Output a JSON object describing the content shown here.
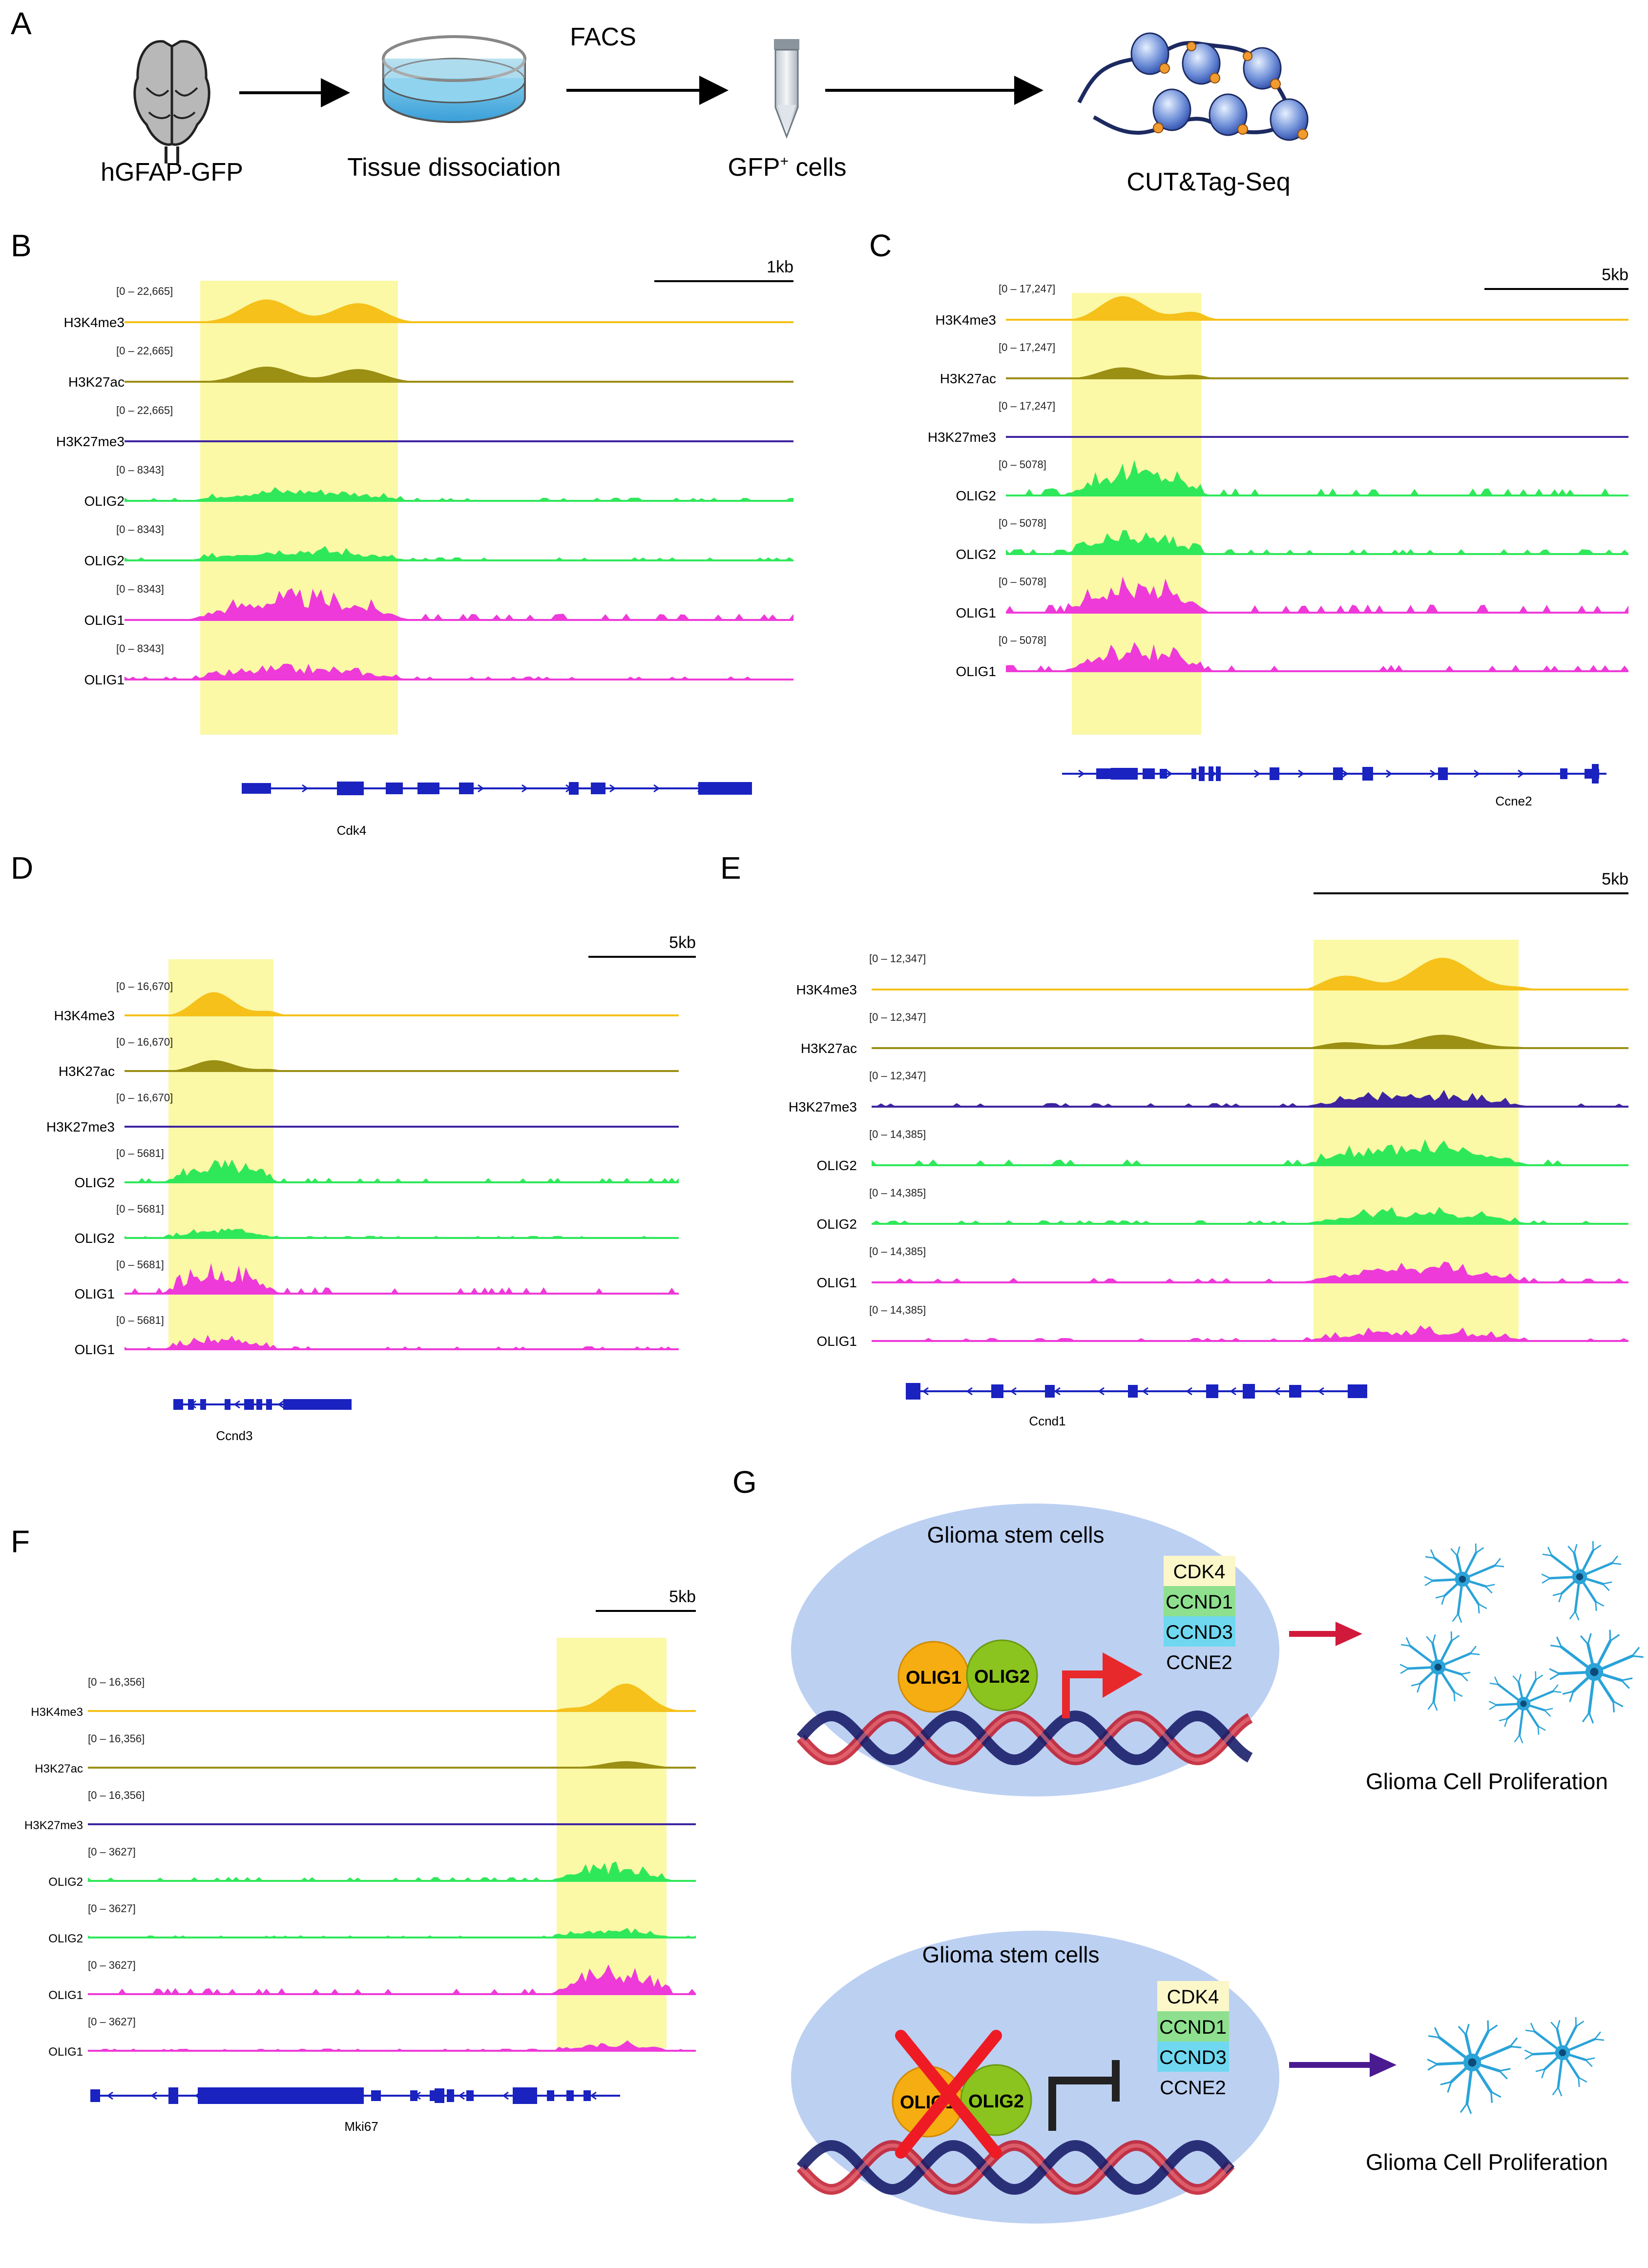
{
  "colors": {
    "H3K4me3": "#f5c11a",
    "H3K27ac": "#9b8f14",
    "H3K27me3": "#3f24a0",
    "OLIG2": "#2fe85a",
    "OLIG1": "#ee3ad8",
    "highlight": "#fbf8a6",
    "gene": "#1a22c0",
    "arrow_red": "#d11a3b",
    "arrow_purple": "#4a1a90",
    "ellipse": "#bcd0f2"
  },
  "panelA": {
    "label": "A",
    "steps": [
      "hGFAP-GFP",
      "Tissue dissociation",
      "GFP",
      "CUT&Tag-Seq"
    ],
    "gfp_sup": "+",
    "gfp_suffix": " cells",
    "facs": "FACS"
  },
  "panels": [
    {
      "id": "B",
      "label": "B",
      "gene": "Cdk4",
      "scale": "1kb",
      "tracks": [
        {
          "name": "H3K4me3",
          "mark": "H3K4me3",
          "range": "[0 – 22,665]"
        },
        {
          "name": "H3K27ac",
          "mark": "H3K27ac",
          "range": "[0 – 22,665]"
        },
        {
          "name": "H3K27me3",
          "mark": "H3K27me3",
          "range": "[0 – 22,665]"
        },
        {
          "name": "OLIG2",
          "mark": "OLIG2",
          "range": "[0 – 8343]"
        },
        {
          "name": "OLIG2",
          "mark": "OLIG2",
          "range": "[0 – 8343]"
        },
        {
          "name": "OLIG1",
          "mark": "OLIG1",
          "range": "[0 – 8343]"
        },
        {
          "name": "OLIG1",
          "mark": "OLIG1",
          "range": "[0 – 8343]"
        }
      ]
    },
    {
      "id": "C",
      "label": "C",
      "gene": "Ccne2",
      "scale": "5kb",
      "tracks": [
        {
          "name": "H3K4me3",
          "mark": "H3K4me3",
          "range": "[0 – 17,247]"
        },
        {
          "name": "H3K27ac",
          "mark": "H3K27ac",
          "range": "[0 – 17,247]"
        },
        {
          "name": "H3K27me3",
          "mark": "H3K27me3",
          "range": "[0 – 17,247]"
        },
        {
          "name": "OLIG2",
          "mark": "OLIG2",
          "range": "[0 – 5078]"
        },
        {
          "name": "OLIG2",
          "mark": "OLIG2",
          "range": "[0 – 5078]"
        },
        {
          "name": "OLIG1",
          "mark": "OLIG1",
          "range": "[0 – 5078]"
        },
        {
          "name": "OLIG1",
          "mark": "OLIG1",
          "range": "[0 – 5078]"
        }
      ]
    },
    {
      "id": "D",
      "label": "D",
      "gene": "Ccnd3",
      "scale": "5kb",
      "tracks": [
        {
          "name": "H3K4me3",
          "mark": "H3K4me3",
          "range": "[0 – 16,670]"
        },
        {
          "name": "H3K27ac",
          "mark": "H3K27ac",
          "range": "[0 – 16,670]"
        },
        {
          "name": "H3K27me3",
          "mark": "H3K27me3",
          "range": "[0 – 16,670]"
        },
        {
          "name": "OLIG2",
          "mark": "OLIG2",
          "range": "[0 – 5681]"
        },
        {
          "name": "OLIG2",
          "mark": "OLIG2",
          "range": "[0 – 5681]"
        },
        {
          "name": "OLIG1",
          "mark": "OLIG1",
          "range": "[0 – 5681]"
        },
        {
          "name": "OLIG1",
          "mark": "OLIG1",
          "range": "[0 – 5681]"
        }
      ]
    },
    {
      "id": "E",
      "label": "E",
      "gene": "Ccnd1",
      "scale": "5kb",
      "tracks": [
        {
          "name": "H3K4me3",
          "mark": "H3K4me3",
          "range": "[0 – 12,347]"
        },
        {
          "name": "H3K27ac",
          "mark": "H3K27ac",
          "range": "[0 – 12,347]"
        },
        {
          "name": "H3K27me3",
          "mark": "H3K27me3",
          "range": "[0 – 12,347]"
        },
        {
          "name": "OLIG2",
          "mark": "OLIG2",
          "range": "[0 – 14,385]"
        },
        {
          "name": "OLIG2",
          "mark": "OLIG2",
          "range": "[0 – 14,385]"
        },
        {
          "name": "OLIG1",
          "mark": "OLIG1",
          "range": "[0 – 14,385]"
        },
        {
          "name": "OLIG1",
          "mark": "OLIG1",
          "range": "[0 – 14,385]"
        }
      ]
    },
    {
      "id": "F",
      "label": "F",
      "gene": "Mki67",
      "scale": "5kb",
      "tracks": [
        {
          "name": "H3K4me3",
          "mark": "H3K4me3",
          "range": "[0 – 16,356]"
        },
        {
          "name": "H3K27ac",
          "mark": "H3K27ac",
          "range": "[0 – 16,356]"
        },
        {
          "name": "H3K27me3",
          "mark": "H3K27me3",
          "range": "[0 – 16,356]"
        },
        {
          "name": "OLIG2",
          "mark": "OLIG2",
          "range": "[0 – 3627]"
        },
        {
          "name": "OLIG2",
          "mark": "OLIG2",
          "range": "[0 – 3627]"
        },
        {
          "name": "OLIG1",
          "mark": "OLIG1",
          "range": "[0 – 3627]"
        },
        {
          "name": "OLIG1",
          "mark": "OLIG1",
          "range": "[0 – 3627]"
        }
      ]
    }
  ],
  "panelG": {
    "label": "G",
    "top": {
      "title": "Glioma stem cells",
      "olig1": "OLIG1",
      "olig2": "OLIG2",
      "genes": [
        "CDK4",
        "CCND1",
        "CCND3",
        "CCNE2"
      ],
      "outcome": "Glioma Cell Proliferation"
    },
    "bottom": {
      "title": "Glioma stem cells",
      "olig1": "OLIG1",
      "olig2": "OLIG2",
      "genes": [
        "CDK4",
        "CCND1",
        "CCND3",
        "CCNE2"
      ],
      "outcome": "Glioma Cell Proliferation"
    }
  }
}
